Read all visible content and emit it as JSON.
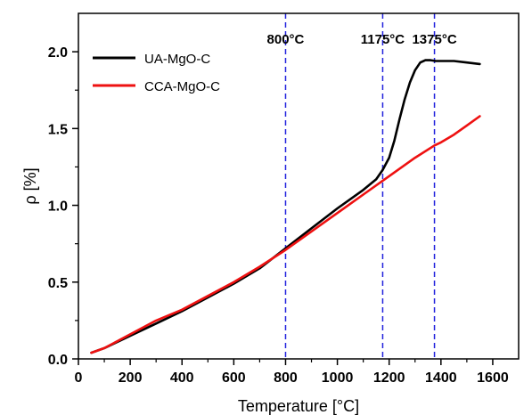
{
  "chart_data": {
    "type": "line",
    "title": "",
    "xlabel": "Temperature [°C]",
    "ylabel": "ρ [%]",
    "xlim": [
      0,
      1700
    ],
    "ylim": [
      0,
      2.25
    ],
    "xticks": [
      0,
      200,
      400,
      600,
      800,
      1000,
      1200,
      1400,
      1600
    ],
    "xtick_labels": [
      "0",
      "200",
      "400",
      "600",
      "800",
      "1000",
      "1200",
      "1400",
      "1600"
    ],
    "yticks": [
      0,
      0.5,
      1.0,
      1.5,
      2.0
    ],
    "ytick_labels": [
      "0.0",
      "0.5",
      "1.0",
      "1.5",
      "2.0"
    ],
    "grid": false,
    "legend_position": "top-left",
    "series": [
      {
        "name": "UA-MgO-C",
        "color": "#000000",
        "x": [
          50,
          100,
          200,
          300,
          400,
          500,
          600,
          700,
          800,
          900,
          1000,
          1100,
          1150,
          1175,
          1200,
          1220,
          1240,
          1260,
          1280,
          1300,
          1320,
          1340,
          1360,
          1380,
          1400,
          1450,
          1500,
          1550
        ],
        "y": [
          0.04,
          0.07,
          0.15,
          0.23,
          0.31,
          0.4,
          0.49,
          0.59,
          0.72,
          0.85,
          0.98,
          1.1,
          1.17,
          1.23,
          1.31,
          1.42,
          1.56,
          1.69,
          1.8,
          1.88,
          1.93,
          1.945,
          1.945,
          1.94,
          1.94,
          1.94,
          1.93,
          1.92
        ]
      },
      {
        "name": "CCA-MgO-C",
        "color": "#ee1111",
        "x": [
          50,
          100,
          200,
          300,
          400,
          500,
          600,
          700,
          800,
          900,
          1000,
          1100,
          1200,
          1300,
          1375,
          1400,
          1450,
          1500,
          1550
        ],
        "y": [
          0.04,
          0.07,
          0.16,
          0.25,
          0.32,
          0.41,
          0.5,
          0.6,
          0.71,
          0.83,
          0.95,
          1.07,
          1.19,
          1.31,
          1.39,
          1.41,
          1.46,
          1.52,
          1.58
        ]
      }
    ],
    "annotations": [
      {
        "text": "800°C",
        "x": 800,
        "color": "#2222dd",
        "style": "dashed"
      },
      {
        "text": "1175°C",
        "x": 1175,
        "color": "#2222dd",
        "style": "dashed"
      },
      {
        "text": "1375°C",
        "x": 1375,
        "color": "#2222dd",
        "style": "dashed"
      }
    ]
  }
}
